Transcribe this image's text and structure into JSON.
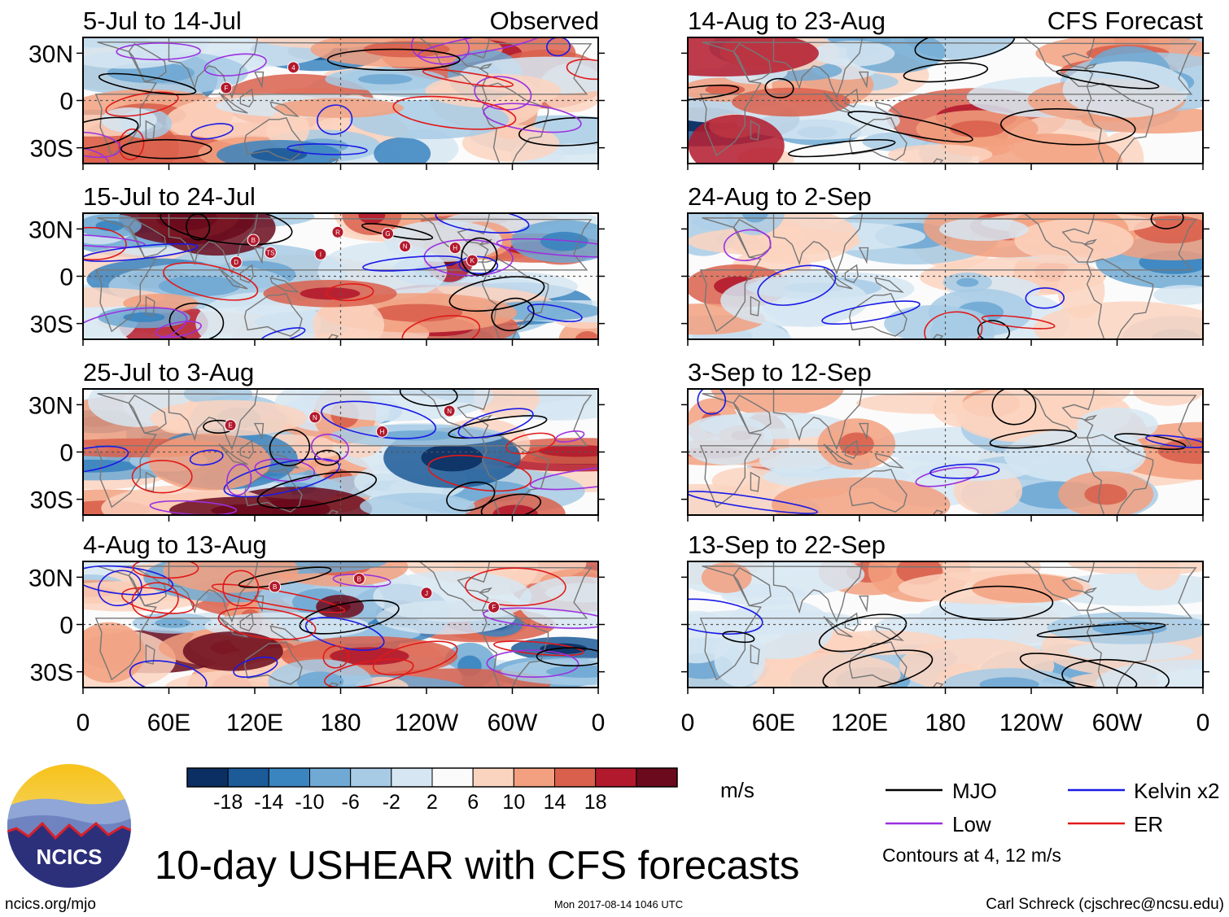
{
  "chart_data": {
    "type": "heatmap",
    "title": "10-day USHEAR with CFS forecasts",
    "units": "m/s",
    "x_tick_labels": [
      "0",
      "60E",
      "120E",
      "180",
      "120W",
      "60W",
      "0"
    ],
    "y_tick_labels": [
      "30N",
      "0",
      "30S"
    ],
    "xlim_deg_east": [
      0,
      360
    ],
    "ylim_deg": [
      -40,
      40
    ],
    "column_labels": {
      "left": "Observed",
      "right": "CFS Forecast"
    },
    "panels": [
      {
        "title": "5-Jul to 14-Jul",
        "group": "Observed",
        "storms": [
          "F",
          "4"
        ]
      },
      {
        "title": "15-Jul to 24-Jul",
        "group": "Observed",
        "storms": [
          "TS",
          "R",
          "N",
          "K",
          "B",
          "I",
          "G",
          "H",
          "D"
        ]
      },
      {
        "title": "25-Jul to 3-Aug",
        "group": "Observed",
        "storms": [
          "N",
          "H",
          "N",
          "E"
        ]
      },
      {
        "title": "4-Aug to 13-Aug",
        "group": "Observed",
        "storms": [
          "B",
          "J",
          "F",
          "B"
        ]
      },
      {
        "title": "14-Aug to 23-Aug",
        "group": "CFS Forecast",
        "storms": []
      },
      {
        "title": "24-Aug to 2-Sep",
        "group": "CFS Forecast",
        "storms": []
      },
      {
        "title": "3-Sep to 12-Sep",
        "group": "CFS Forecast",
        "storms": []
      },
      {
        "title": "13-Sep to 22-Sep",
        "group": "CFS Forecast",
        "storms": []
      }
    ],
    "colorbar": {
      "tick_labels": [
        "-18",
        "-14",
        "-10",
        "-6",
        "-2",
        "2",
        "6",
        "10",
        "14",
        "18"
      ],
      "colors": [
        "#0b2f63",
        "#1c5a98",
        "#3a84bf",
        "#6fa9d4",
        "#a7cbe5",
        "#d6e6f2",
        "#fbfbfb",
        "#fbd4c0",
        "#f2a07f",
        "#d9604c",
        "#b3192c",
        "#6a0a1c"
      ]
    },
    "legend": [
      {
        "label": "MJO",
        "color": "#000000"
      },
      {
        "label": "Kelvin x2",
        "color": "#1a1ae6"
      },
      {
        "label": "Low",
        "color": "#9b30e0"
      },
      {
        "label": "ER",
        "color": "#e01a1a"
      }
    ],
    "contour_note": "Contours at 4, 12 m/s"
  },
  "logo_text": "NCICS",
  "footer": {
    "left": "ncics.org/mjo",
    "center": "Mon 2017-08-14 1046 UTC",
    "right": "Carl Schreck (cjschrec@ncsu.edu)"
  }
}
